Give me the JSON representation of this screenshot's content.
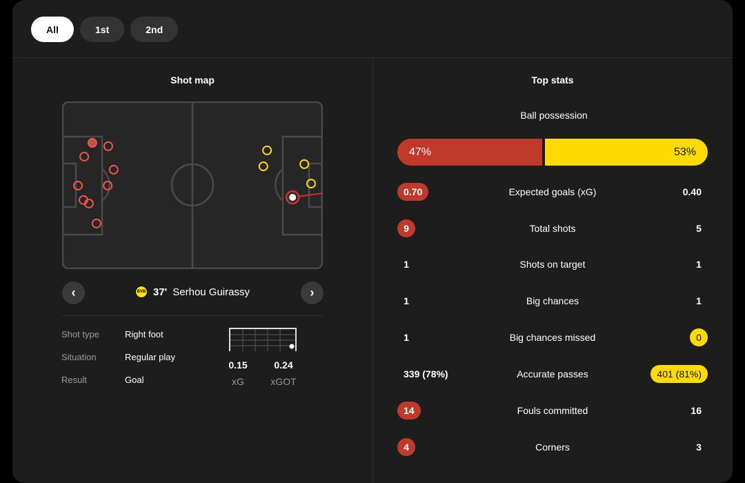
{
  "tabs": [
    "All",
    "1st",
    "2nd"
  ],
  "shotmap": {
    "title": "Shot map",
    "home_color": "#f0554a",
    "away_color": "#fedb00",
    "home_shots": [
      {
        "x": 11.6,
        "y": 24.7,
        "goal": true
      },
      {
        "x": 17.7,
        "y": 26.7
      },
      {
        "x": 8.5,
        "y": 32.9
      },
      {
        "x": 19.8,
        "y": 40.7
      },
      {
        "x": 6.1,
        "y": 50.2
      },
      {
        "x": 17.5,
        "y": 50.2
      },
      {
        "x": 8.2,
        "y": 58.8
      },
      {
        "x": 10.3,
        "y": 60.9
      },
      {
        "x": 13.2,
        "y": 72.8
      }
    ],
    "away_shots": [
      {
        "x": 78.6,
        "y": 29.2
      },
      {
        "x": 77.2,
        "y": 38.7
      },
      {
        "x": 92.9,
        "y": 37.4
      },
      {
        "x": 95.5,
        "y": 49.0
      }
    ],
    "selected": {
      "x": 88.4,
      "y": 57.2,
      "minute": "37'",
      "player": "Serhou Guirassy",
      "team_badge": "BVB"
    },
    "details": [
      {
        "k": "Shot type",
        "v": "Right foot"
      },
      {
        "k": "Situation",
        "v": "Regular play"
      },
      {
        "k": "Result",
        "v": "Goal"
      }
    ],
    "xg": "0.15",
    "xg_label": "xG",
    "xgot": "0.24",
    "xgot_label": "xGOT"
  },
  "stats": {
    "title": "Top stats",
    "possession_label": "Ball possession",
    "possession_home": "47%",
    "possession_away": "53%",
    "possession_home_value": 47,
    "rows": [
      {
        "label": "Expected goals (xG)",
        "home": "0.70",
        "away": "0.40",
        "hl": "home"
      },
      {
        "label": "Total shots",
        "home": "9",
        "away": "5",
        "hl": "home"
      },
      {
        "label": "Shots on target",
        "home": "1",
        "away": "1",
        "hl": ""
      },
      {
        "label": "Big chances",
        "home": "1",
        "away": "1",
        "hl": ""
      },
      {
        "label": "Big chances missed",
        "home": "1",
        "away": "0",
        "hl": "away"
      },
      {
        "label": "Accurate passes",
        "home": "339 (78%)",
        "away": "401 (81%)",
        "hl": "away"
      },
      {
        "label": "Fouls committed",
        "home": "14",
        "away": "16",
        "hl": "home"
      },
      {
        "label": "Corners",
        "home": "4",
        "away": "3",
        "hl": "home"
      }
    ]
  }
}
